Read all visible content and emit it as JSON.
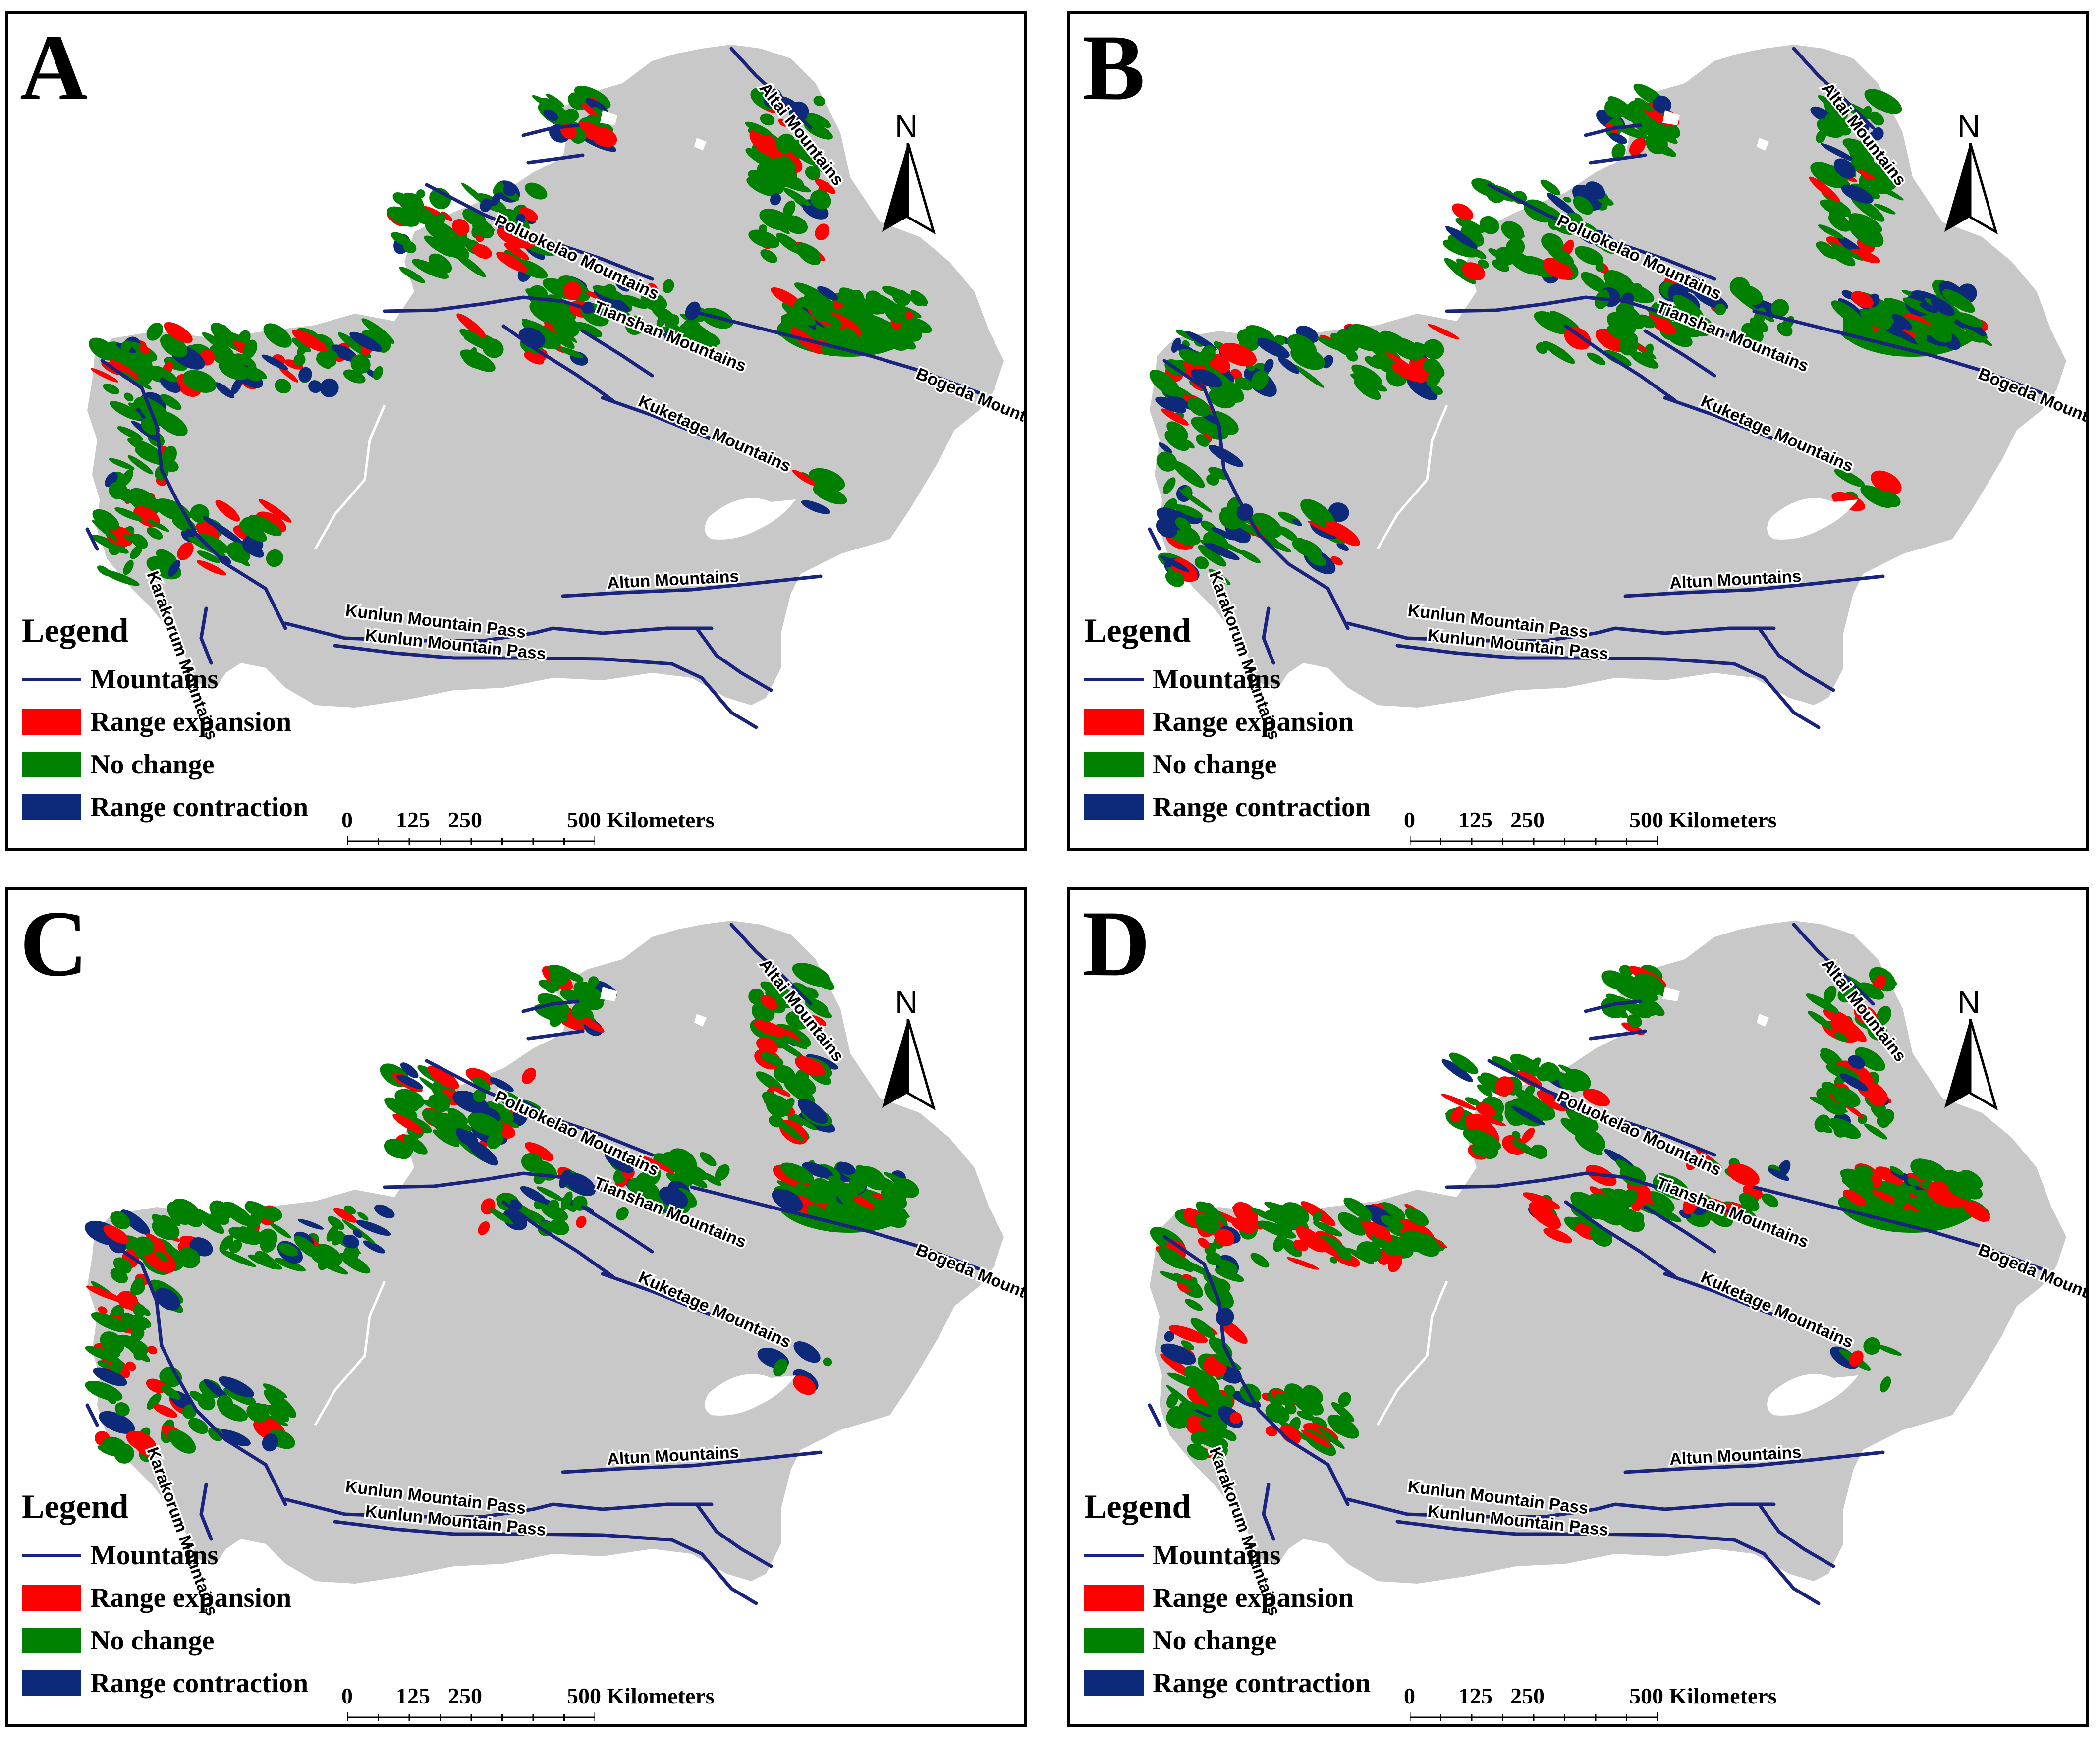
{
  "panels": [
    {
      "label": "A"
    },
    {
      "label": "B"
    },
    {
      "label": "C"
    },
    {
      "label": "D"
    }
  ],
  "legend": {
    "title": "Legend",
    "items": [
      {
        "label": "Mountains",
        "kind": "line",
        "color": "#1a237e"
      },
      {
        "label": "Range expansion",
        "kind": "fill",
        "color": "#ff0000"
      },
      {
        "label": "No change",
        "kind": "fill",
        "color": "#008000"
      },
      {
        "label": "Range contraction",
        "kind": "fill",
        "color": "#0d2a7a"
      }
    ]
  },
  "scale": {
    "ticks": [
      "0",
      "125",
      "250",
      "500 Kilometers"
    ]
  },
  "north_arrow": {
    "label": "N"
  },
  "mountains": [
    "Altai Mountains",
    "Poluokelao Mountains",
    "Tianshan Mountains",
    "Bogeda Mountains",
    "Kuketage Mountains",
    "Karakorum Mountains",
    "Kunlun Mountain Pass",
    "Altun Mountains",
    "Kunlun Mountain Pass"
  ],
  "colors": {
    "land": "#c8c8c8",
    "water": "#ffffff",
    "mountain_line": "#1a237e",
    "expansion": "#ff0000",
    "no_change": "#008000",
    "contraction": "#0d2a7a"
  }
}
